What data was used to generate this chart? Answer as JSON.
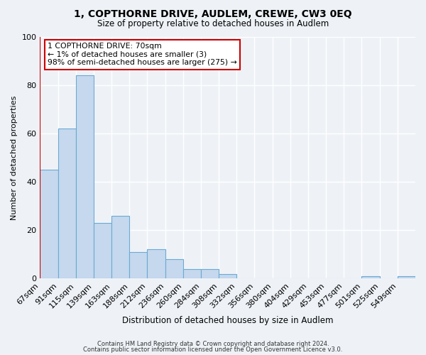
{
  "title": "1, COPTHORNE DRIVE, AUDLEM, CREWE, CW3 0EQ",
  "subtitle": "Size of property relative to detached houses in Audlem",
  "xlabel": "Distribution of detached houses by size in Audlem",
  "ylabel": "Number of detached properties",
  "footer_line1": "Contains HM Land Registry data © Crown copyright and database right 2024.",
  "footer_line2": "Contains public sector information licensed under the Open Government Licence v3.0.",
  "bin_labels": [
    "67sqm",
    "91sqm",
    "115sqm",
    "139sqm",
    "163sqm",
    "188sqm",
    "212sqm",
    "236sqm",
    "260sqm",
    "284sqm",
    "308sqm",
    "332sqm",
    "356sqm",
    "380sqm",
    "404sqm",
    "429sqm",
    "453sqm",
    "477sqm",
    "501sqm",
    "525sqm",
    "549sqm"
  ],
  "bar_values": [
    45,
    62,
    84,
    23,
    26,
    11,
    12,
    8,
    4,
    4,
    2,
    0,
    0,
    0,
    0,
    0,
    0,
    0,
    1,
    0,
    1
  ],
  "bar_color": "#c5d8ed",
  "bar_edge_color": "#6aaad4",
  "annotation_title": "1 COPTHORNE DRIVE: 70sqm",
  "annotation_line2": "← 1% of detached houses are smaller (3)",
  "annotation_line3": "98% of semi-detached houses are larger (275) →",
  "annotation_box_color": "#ffffff",
  "annotation_box_edge_color": "#cc0000",
  "ylim": [
    0,
    100
  ],
  "background_color": "#eef2f7",
  "plot_background": "#eef2f7",
  "grid_color": "#ffffff",
  "red_line_color": "#cc0000"
}
